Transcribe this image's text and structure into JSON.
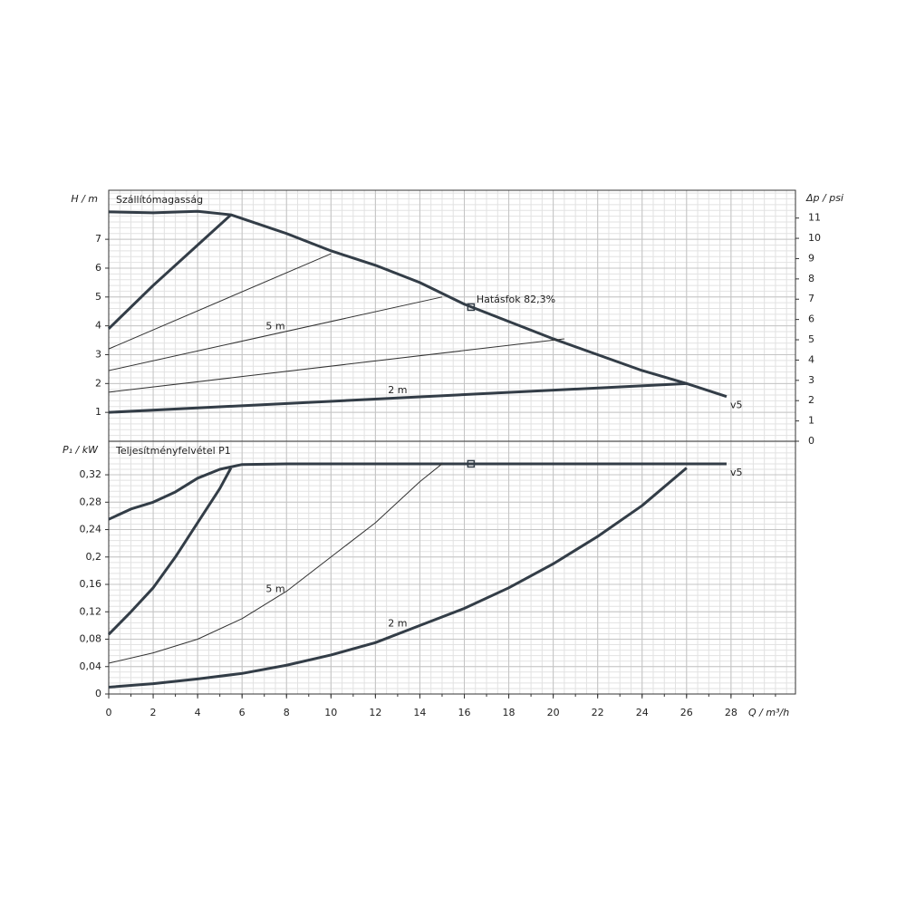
{
  "chart_data": [
    {
      "type": "line",
      "title": "Szállítómagasság",
      "y_label": "H / m",
      "y2_label": "Δp / psi",
      "xlim": [
        0,
        30.9
      ],
      "ylim": [
        0,
        8.7
      ],
      "yticks": [
        1,
        2,
        3,
        4,
        5,
        6,
        7
      ],
      "y2lim": [
        0,
        12.37
      ],
      "y2ticks": [
        0,
        1,
        2,
        3,
        4,
        5,
        6,
        7,
        8,
        9,
        10,
        11
      ],
      "grid": true,
      "series": [
        {
          "name": "v5",
          "color": "#333d47",
          "linewidth": 3,
          "x": [
            0,
            2,
            4,
            5.5,
            8,
            10,
            12,
            14,
            16,
            18,
            20,
            22,
            24,
            26,
            27.8
          ],
          "values": [
            7.95,
            7.92,
            7.97,
            7.85,
            7.2,
            6.6,
            6.1,
            5.5,
            4.75,
            4.15,
            3.55,
            3.0,
            2.45,
            2.0,
            1.55
          ]
        },
        {
          "color": "#333d47",
          "linewidth": 3,
          "x": [
            0,
            2,
            4,
            5.5
          ],
          "values": [
            3.9,
            5.4,
            6.8,
            7.85
          ]
        },
        {
          "color": "#333",
          "linewidth": 1,
          "x": [
            0,
            10
          ],
          "values": [
            3.2,
            6.5
          ]
        },
        {
          "name": "5 m",
          "color": "#333",
          "linewidth": 1,
          "x": [
            0,
            15
          ],
          "values": [
            2.45,
            5.0
          ]
        },
        {
          "color": "#333",
          "linewidth": 1,
          "x": [
            0,
            20.5
          ],
          "values": [
            1.7,
            3.55
          ]
        },
        {
          "name": "2 m",
          "color": "#333d47",
          "linewidth": 3,
          "x": [
            0,
            26
          ],
          "values": [
            1.0,
            2.0
          ]
        },
        {
          "name": "Hatásfok  82,3%",
          "color": "#333d47",
          "marker": "square",
          "x": [
            16.3
          ],
          "values": [
            4.65
          ]
        }
      ]
    },
    {
      "type": "line",
      "title": "Teljesítményfelvétel P1",
      "y_label": "P₁ / kW",
      "x_label": "Q / m³/h",
      "xlim": [
        0,
        30.9
      ],
      "xticks": [
        0,
        2,
        4,
        6,
        8,
        10,
        12,
        14,
        16,
        18,
        20,
        22,
        24,
        26,
        28
      ],
      "ylim": [
        0,
        0.369
      ],
      "yticks": [
        0,
        {
          "value": 0.04,
          "label": "0,04"
        },
        {
          "value": 0.08,
          "label": "0,08"
        },
        {
          "value": 0.12,
          "label": "0,12"
        },
        {
          "value": 0.16,
          "label": "0,16"
        },
        {
          "value": 0.2,
          "label": "0,2"
        },
        {
          "value": 0.24,
          "label": "0,24"
        },
        {
          "value": 0.28,
          "label": "0,28"
        },
        {
          "value": 0.32,
          "label": "0,32"
        }
      ],
      "grid": true,
      "series": [
        {
          "name": "v5",
          "color": "#333d47",
          "linewidth": 3,
          "x": [
            0,
            1,
            2,
            3,
            4,
            5,
            6,
            8,
            27.8
          ],
          "values": [
            0.255,
            0.27,
            0.28,
            0.295,
            0.315,
            0.328,
            0.335,
            0.336,
            0.336
          ]
        },
        {
          "color": "#333d47",
          "linewidth": 3,
          "x": [
            0,
            1,
            2,
            3,
            4,
            5,
            5.5
          ],
          "values": [
            0.087,
            0.12,
            0.155,
            0.2,
            0.25,
            0.3,
            0.33
          ]
        },
        {
          "name": "5 m",
          "color": "#333",
          "linewidth": 1,
          "x": [
            0,
            2,
            4,
            6,
            8,
            10,
            12,
            14,
            15
          ],
          "values": [
            0.045,
            0.06,
            0.08,
            0.11,
            0.15,
            0.2,
            0.25,
            0.31,
            0.336
          ]
        },
        {
          "name": "2 m",
          "color": "#333d47",
          "linewidth": 3,
          "x": [
            0,
            2,
            4,
            6,
            8,
            10,
            12,
            14,
            16,
            18,
            20,
            22,
            24,
            26
          ],
          "values": [
            0.01,
            0.015,
            0.022,
            0.03,
            0.042,
            0.057,
            0.075,
            0.1,
            0.125,
            0.155,
            0.19,
            0.23,
            0.275,
            0.33
          ]
        },
        {
          "color": "#333d47",
          "marker": "square",
          "x": [
            16.3
          ],
          "values": [
            0.336
          ]
        }
      ]
    }
  ]
}
